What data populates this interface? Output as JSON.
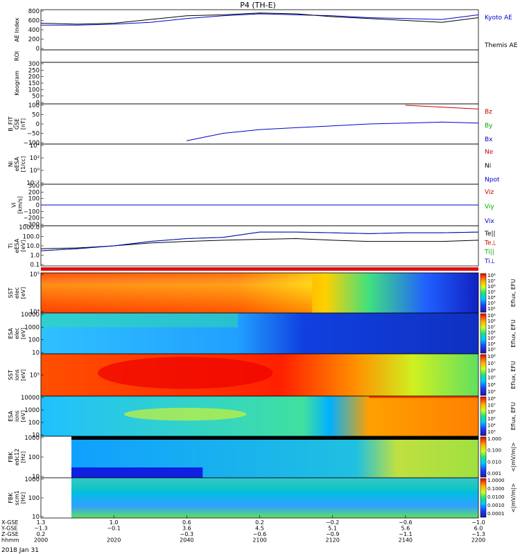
{
  "title": "P4 (TH-E)",
  "date_label": "2018 Jan 31",
  "panels": [
    {
      "id": "ae",
      "ylabel": [
        "AE Index"
      ],
      "ticks": [
        "800",
        "600",
        "400",
        "200",
        "0"
      ],
      "legend": [
        {
          "text": "Kyoto AE",
          "color": "#0000cc"
        },
        {
          "text": "Themis AE",
          "color": "#000000"
        }
      ]
    },
    {
      "id": "roi",
      "ylabel": [
        "ROI"
      ],
      "ticks": [],
      "legend": []
    },
    {
      "id": "keogram",
      "ylabel": [
        "Keogram"
      ],
      "ticks": [
        "300",
        "250",
        "200",
        "150",
        "100",
        "50",
        "0"
      ],
      "legend": []
    },
    {
      "id": "bfit",
      "ylabel": [
        "B_FIT",
        "GSE",
        "[nT]"
      ],
      "ticks": [
        "100",
        "50",
        "0",
        "−50",
        "−100"
      ],
      "legend": [
        {
          "text": "Bz",
          "color": "#cc0000"
        },
        {
          "text": "By",
          "color": "#00aa00"
        },
        {
          "text": "Bx",
          "color": "#0000cc"
        }
      ]
    },
    {
      "id": "ni",
      "ylabel": [
        "Ni",
        "eESA",
        "[1/cc]"
      ],
      "ticks": [
        "10⁴",
        "10²",
        "10⁰",
        "10⁻²"
      ],
      "legend": [
        {
          "text": "Ne",
          "color": "#cc0000"
        },
        {
          "text": "Ni",
          "color": "#000000"
        },
        {
          "text": "Npot",
          "color": "#0000cc"
        }
      ]
    },
    {
      "id": "vi",
      "ylabel": [
        "Vi",
        "[km/s]"
      ],
      "ticks": [
        "300",
        "200",
        "100",
        "0",
        "−100",
        "−200",
        "−300"
      ],
      "legend": [
        {
          "text": "Viz",
          "color": "#cc0000"
        },
        {
          "text": "Viy",
          "color": "#00aa00"
        },
        {
          "text": "Vix",
          "color": "#0000cc"
        }
      ]
    },
    {
      "id": "ti",
      "ylabel": [
        "Ti",
        "eESA",
        "[eV]"
      ],
      "ticks": [
        "1000.0",
        "100.0",
        "10.0",
        "1.0",
        "0.1"
      ],
      "legend": [
        {
          "text": "Te||",
          "color": "#000000"
        },
        {
          "text": "Te⊥",
          "color": "#cc0000"
        },
        {
          "text": "Ti||",
          "color": "#00aa00"
        },
        {
          "text": "Ti⊥",
          "color": "#0000cc"
        }
      ]
    },
    {
      "id": "sst_e",
      "ylabel": [
        "SST",
        "elec",
        "[eV]"
      ],
      "ticks": [
        "10⁵",
        "10⁴"
      ],
      "legend": [],
      "cbar": {
        "label": "Eflux, EFU",
        "ticks": [
          "10⁸",
          "10⁷",
          "10⁶",
          "10⁵",
          "10⁴",
          "10³",
          "10²"
        ]
      }
    },
    {
      "id": "esa_e",
      "ylabel": [
        "ESA",
        "elec",
        "[eV]"
      ],
      "ticks": [
        "10000",
        "1000",
        "100",
        "10"
      ],
      "legend": [],
      "cbar": {
        "label": "Eflux, EFU",
        "ticks": [
          "10⁹",
          "10⁸",
          "10⁷",
          "10⁶",
          "10⁵",
          "10⁴",
          "10³"
        ]
      }
    },
    {
      "id": "sst_i",
      "ylabel": [
        "SST",
        "ions",
        "[eV]"
      ],
      "ticks": [
        "10⁵"
      ],
      "legend": [],
      "cbar": {
        "label": "Eflux, EFU",
        "ticks": [
          "10⁸",
          "10⁷",
          "10⁶",
          "10⁵",
          "10⁴",
          "10³"
        ]
      }
    },
    {
      "id": "esa_i",
      "ylabel": [
        "ESA",
        "ions",
        "[eV]"
      ],
      "ticks": [
        "10000",
        "1000",
        "100",
        "10"
      ],
      "legend": [],
      "cbar": {
        "label": "Eflux, EFU",
        "ticks": [
          "10⁸",
          "10⁷",
          "10⁶",
          "10⁵",
          "10⁴",
          "10³"
        ]
      }
    },
    {
      "id": "fbk_edc",
      "ylabel": [
        "FBK",
        "edc12",
        "[Hz]"
      ],
      "ticks": [
        "1000",
        "100",
        "10"
      ],
      "legend": [],
      "cbar": {
        "label": "<|mV/m|>",
        "ticks": [
          "1.000",
          "0.100",
          "0.010",
          "0.001"
        ]
      }
    },
    {
      "id": "fbk_scm",
      "ylabel": [
        "FBK",
        "scm1",
        "[Hz]"
      ],
      "ticks": [
        "1000",
        "100",
        "10"
      ],
      "legend": [],
      "cbar": {
        "label": "<|mV/m|>",
        "ticks": [
          "1.0000",
          "0.1000",
          "0.0100",
          "0.0010",
          "0.0001"
        ]
      }
    }
  ],
  "xaxis": {
    "row_labels": [
      "X-GSE",
      "Y-GSE",
      "Z-GSE",
      "hhmm"
    ],
    "columns": [
      [
        "1.3",
        "−1.3",
        "0.2",
        "2000"
      ],
      [
        "1.0",
        "−0.1",
        "",
        "2020"
      ],
      [
        "0.6",
        "3.6",
        "−0.3",
        "2040"
      ],
      [
        "0.2",
        "4.5",
        "−0.6",
        "2100"
      ],
      [
        "−0.2",
        "5.1",
        "−0.9",
        "2120"
      ],
      [
        "−0.6",
        "5.6",
        "−1.1",
        "2140"
      ],
      [
        "−1.0",
        "6.0",
        "−1.3",
        "2200"
      ]
    ]
  },
  "chart_data": {
    "type": "line",
    "title": "P4 (TH-E)",
    "x": [
      "2000",
      "2010",
      "2020",
      "2030",
      "2040",
      "2050",
      "2100",
      "2110",
      "2120",
      "2130",
      "2140",
      "2150",
      "2200"
    ],
    "panels": [
      {
        "name": "AE Index",
        "ylim": [
          0,
          800
        ],
        "series": [
          {
            "name": "Kyoto AE",
            "values": [
              500,
              500,
              520,
              560,
              640,
              700,
              740,
              720,
              700,
              660,
              640,
              620,
              720
            ]
          },
          {
            "name": "Themis AE",
            "values": [
              540,
              520,
              540,
              620,
              700,
              720,
              760,
              740,
              680,
              640,
              600,
              560,
              660
            ]
          }
        ]
      },
      {
        "name": "B_FIT GSE [nT]",
        "ylim": [
          -100,
          100
        ],
        "series": [
          {
            "name": "Bz",
            "values": [
              null,
              null,
              null,
              null,
              null,
              null,
              null,
              null,
              null,
              null,
              100,
              90,
              80
            ]
          },
          {
            "name": "By",
            "values": [
              null,
              null,
              null,
              null,
              null,
              null,
              null,
              null,
              null,
              null,
              null,
              null,
              null
            ]
          },
          {
            "name": "Bx",
            "values": [
              null,
              null,
              null,
              null,
              -90,
              -50,
              -30,
              -20,
              -10,
              0,
              5,
              10,
              5
            ]
          }
        ]
      },
      {
        "name": "Vi [km/s]",
        "ylim": [
          -300,
          300
        ],
        "series": [
          {
            "name": "Viz",
            "values": [
              0,
              0,
              0,
              0,
              0,
              0,
              0,
              0,
              0,
              0,
              0,
              0,
              0
            ]
          },
          {
            "name": "Viy",
            "values": [
              0,
              0,
              0,
              0,
              0,
              0,
              0,
              0,
              0,
              0,
              0,
              0,
              0
            ]
          },
          {
            "name": "Vix",
            "values": [
              0,
              0,
              0,
              0,
              0,
              0,
              0,
              0,
              0,
              0,
              0,
              0,
              0
            ]
          }
        ]
      },
      {
        "name": "Ti eESA [eV]",
        "ylim": [
          0.1,
          1000
        ],
        "scale": "log",
        "series": [
          {
            "name": "Te||",
            "values": [
              5,
              6,
              10,
              20,
              30,
              40,
              50,
              60,
              40,
              30,
              30,
              30,
              40
            ]
          },
          {
            "name": "Ti||",
            "values": [
              3,
              5,
              10,
              30,
              60,
              80,
              300,
              300,
              250,
              200,
              250,
              250,
              300
            ]
          },
          {
            "name": "Ti⊥",
            "values": [
              3,
              5,
              10,
              30,
              60,
              80,
              300,
              300,
              250,
              200,
              250,
              250,
              300
            ]
          }
        ]
      }
    ]
  },
  "colors": {
    "red": "#cc0000",
    "green": "#00aa00",
    "blue": "#0000cc",
    "black": "#000000"
  }
}
